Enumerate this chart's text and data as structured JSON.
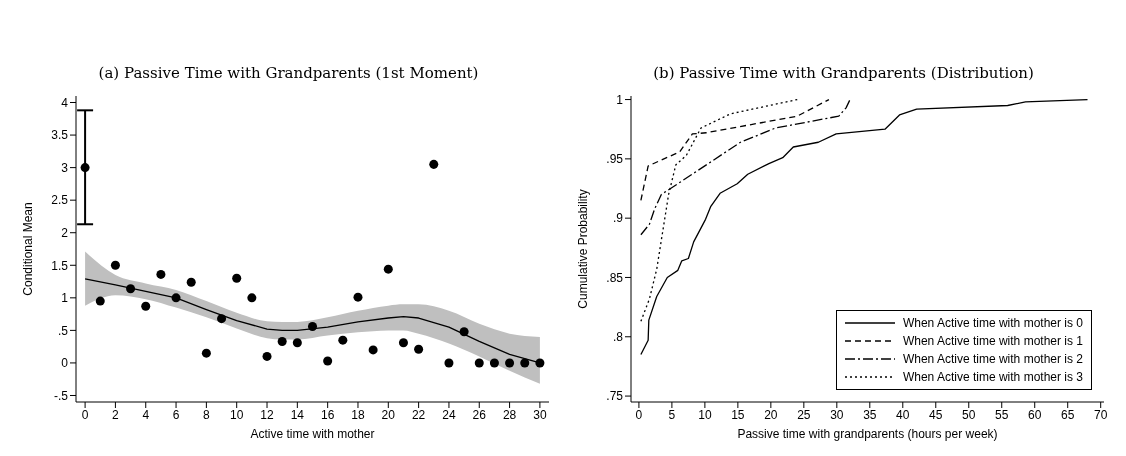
{
  "chart_data": [
    {
      "type": "scatter",
      "title": "(a) Passive Time with Grandparents (1st Moment)",
      "xlabel": "Active time with mother",
      "ylabel": "Conditional Mean",
      "xlim": [
        -0.6,
        30.6
      ],
      "ylim": [
        -0.6,
        4.1
      ],
      "xticks": [
        0,
        2,
        4,
        6,
        8,
        10,
        12,
        14,
        16,
        18,
        20,
        22,
        24,
        26,
        28,
        30
      ],
      "yticks": [
        {
          "value": -0.5,
          "label": "-.5"
        },
        0,
        {
          "value": 0.5,
          "label": ".5"
        },
        1,
        1.5,
        2,
        2.5,
        3,
        3.5,
        4
      ],
      "grid": false,
      "legend": false,
      "series": [
        {
          "color": "#000000",
          "x": [
            0,
            1,
            2,
            3,
            4,
            5,
            6,
            7,
            8,
            9,
            10,
            11,
            12,
            13,
            14,
            15,
            16,
            17,
            18,
            19,
            20,
            21,
            22,
            23,
            24,
            25,
            26,
            27,
            28,
            29,
            30
          ],
          "values": [
            3.0,
            0.95,
            1.5,
            1.14,
            0.87,
            1.36,
            1.0,
            1.24,
            0.15,
            0.68,
            1.3,
            1.0,
            0.1,
            0.33,
            0.31,
            0.56,
            0.03,
            0.35,
            1.01,
            0.2,
            1.44,
            0.31,
            0.21,
            3.05,
            0,
            0.48,
            0,
            0,
            0,
            0,
            0
          ],
          "errors": [
            [
              2.13,
              3.88
            ],
            null,
            null,
            null,
            null,
            null,
            null,
            null,
            null,
            null,
            null,
            null,
            null,
            null,
            null,
            null,
            null,
            null,
            null,
            null,
            null,
            null,
            null,
            null,
            null,
            null,
            null,
            null,
            null,
            null,
            null
          ]
        },
        {
          "type": "line",
          "color": "#000000",
          "x": [
            0,
            2,
            4,
            6,
            8,
            10,
            12,
            13,
            14,
            16,
            18,
            20,
            21,
            22,
            24,
            26,
            28,
            30
          ],
          "values": [
            1.29,
            1.2,
            1.1,
            1.0,
            0.82,
            0.65,
            0.52,
            0.5,
            0.5,
            0.55,
            0.63,
            0.69,
            0.71,
            0.69,
            0.55,
            0.33,
            0.13,
            0
          ],
          "lower": [
            0.88,
            1.04,
            0.98,
            0.85,
            0.7,
            0.53,
            0.38,
            0.36,
            0.36,
            0.42,
            0.47,
            0.5,
            0.5,
            0.45,
            0.3,
            0.1,
            -0.12,
            -0.32
          ],
          "upper": [
            1.71,
            1.35,
            1.22,
            1.12,
            0.95,
            0.77,
            0.64,
            0.63,
            0.63,
            0.7,
            0.8,
            0.88,
            0.9,
            0.9,
            0.8,
            0.6,
            0.45,
            0.4
          ]
        }
      ]
    },
    {
      "type": "line",
      "title": "(b) Passive Time with Grandparents (Distribution)",
      "xlabel": "Passive time with grandparents (hours per week)",
      "ylabel": "Cumulative Probability",
      "xlim": [
        -1.2,
        70.5
      ],
      "ylim": [
        0.745,
        1.003
      ],
      "xticks": [
        0,
        5,
        10,
        15,
        20,
        25,
        30,
        35,
        40,
        45,
        50,
        55,
        60,
        65,
        70
      ],
      "yticks": [
        {
          "value": 0.75,
          "label": ".75"
        },
        {
          "value": 0.8,
          "label": ".8"
        },
        {
          "value": 0.85,
          "label": ".85"
        },
        {
          "value": 0.9,
          "label": ".9"
        },
        {
          "value": 0.95,
          "label": ".95"
        },
        1
      ],
      "grid": false,
      "legend": "bottom right",
      "series": [
        {
          "name": "When Active time with mother is 0",
          "color": "#000000",
          "line_style": "solid",
          "x": [
            0.3,
            1.4,
            1.5,
            2.7,
            4.3,
            5.9,
            6.5,
            7.5,
            8.3,
            10.1,
            10.9,
            12.3,
            14.9,
            16.5,
            19.7,
            21.8,
            23.4,
            27.2,
            29.9,
            37.3,
            39.5,
            42.1,
            55.9,
            58.6,
            68
          ],
          "values": [
            0.785,
            0.797,
            0.814,
            0.834,
            0.85,
            0.856,
            0.864,
            0.866,
            0.88,
            0.899,
            0.91,
            0.921,
            0.929,
            0.937,
            0.946,
            0.951,
            0.96,
            0.964,
            0.971,
            0.975,
            0.987,
            0.992,
            0.995,
            0.998,
            1.0
          ]
        },
        {
          "name": "When Active time with mother is 1",
          "color": "#000000",
          "line_style": "dashed",
          "x": [
            0.3,
            1.4,
            6.2,
            8.1,
            10.2,
            24,
            28.8
          ],
          "values": [
            0.915,
            0.944,
            0.956,
            0.971,
            0.972,
            0.986,
            1.0
          ]
        },
        {
          "name": "When Active time with mother is 2",
          "color": "#000000",
          "line_style": "dashdot",
          "x": [
            0.3,
            1.6,
            2.4,
            3.4,
            4.8,
            15.4,
            20.7,
            30.3,
            31.4,
            32
          ],
          "values": [
            0.886,
            0.895,
            0.908,
            0.92,
            0.925,
            0.964,
            0.976,
            0.986,
            0.993,
            1.0
          ]
        },
        {
          "name": "When Active time with mother is 3",
          "color": "#000000",
          "line_style": "dotted",
          "x": [
            0.3,
            1.6,
            2.7,
            4.5,
            5.6,
            7.2,
            9.4,
            13.9,
            24
          ],
          "values": [
            0.813,
            0.832,
            0.857,
            0.92,
            0.945,
            0.953,
            0.976,
            0.988,
            1.0
          ]
        }
      ]
    }
  ]
}
